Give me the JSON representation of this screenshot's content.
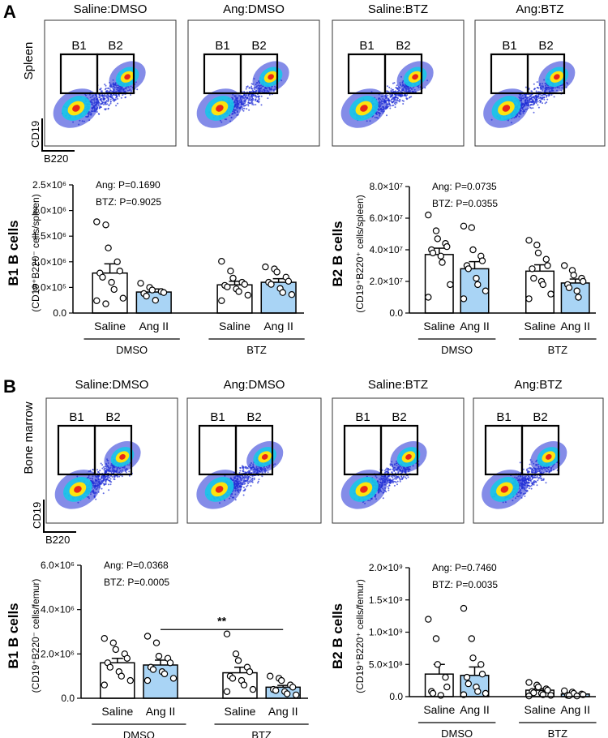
{
  "figure": {
    "colors": {
      "saline_fill": "#ffffff",
      "ang_fill": "#a9d4f5",
      "stroke": "#000000",
      "flow_background": "#ffffff",
      "flow_low": "#1f2dd6",
      "flow_mid": "#17c6e8",
      "flow_high": "#fde30f",
      "flow_peak": "#e8271a"
    },
    "panels": [
      {
        "letter": "A",
        "tissue_label": "Spleen",
        "axis_x_label": "B220",
        "axis_y_label": "CD19",
        "gate_labels": [
          "B1",
          "B2"
        ],
        "plot_titles": [
          "Saline:DMSO",
          "Ang:DMSO",
          "Saline:BTZ",
          "Ang:BTZ"
        ]
      },
      {
        "letter": "B",
        "tissue_label": "Bone marrow",
        "axis_x_label": "B220",
        "axis_y_label": "CD19",
        "gate_labels": [
          "B1",
          "B2"
        ],
        "plot_titles": [
          "Saline:DMSO",
          "Ang:DMSO",
          "Saline:BTZ",
          "Ang:BTZ"
        ]
      }
    ]
  },
  "chart_data": [
    {
      "type": "bar",
      "title": "B1 B cells",
      "ylabel": "(CD19⁺B220⁻ cells/spleen)",
      "ylim": [
        0,
        2500000
      ],
      "ticks": [
        0,
        500000,
        1000000,
        1500000,
        2000000,
        2500000
      ],
      "tick_labels": [
        "0.0",
        "5.0×10⁵",
        "1.0×10⁶",
        "1.5×10⁶",
        "2.0×10⁶",
        "2.5×10⁶"
      ],
      "stats": [
        "Ang: P=0.1690",
        "BTZ: P=0.9025"
      ],
      "group_labels": [
        "DMSO",
        "BTZ"
      ],
      "categories": [
        "Saline",
        "Ang II",
        "Saline",
        "Ang II"
      ],
      "values": [
        780000,
        410000,
        550000,
        600000
      ],
      "sem": [
        180000,
        60000,
        70000,
        70000
      ],
      "points": [
        [
          1780000,
          1720000,
          1270000,
          1000000,
          820000,
          780000,
          700000,
          600000,
          460000,
          290000,
          240000,
          180000
        ],
        [
          580000,
          500000,
          450000,
          420000,
          400000,
          380000,
          330000,
          250000
        ],
        [
          1010000,
          820000,
          680000,
          600000,
          560000,
          540000,
          510000,
          470000,
          420000,
          350000,
          240000
        ],
        [
          900000,
          860000,
          800000,
          700000,
          620000,
          600000,
          560000,
          480000,
          400000,
          360000
        ]
      ],
      "significance": null
    },
    {
      "type": "bar",
      "title": "B2 B cells",
      "ylabel": "(CD19⁺B220⁺ cells/spleen)",
      "ylim": [
        0,
        80000000
      ],
      "ticks": [
        0,
        20000000,
        40000000,
        60000000,
        80000000
      ],
      "tick_labels": [
        "0.0",
        "2.0×10⁷",
        "4.0×10⁷",
        "6.0×10⁷",
        "8.0×10⁷"
      ],
      "stats": [
        "Ang: P=0.0735",
        "BTZ: P=0.0355"
      ],
      "group_labels": [
        "DMSO",
        "BTZ"
      ],
      "categories": [
        "Saline",
        "Ang II",
        "Saline",
        "Ang II"
      ],
      "values": [
        37000000,
        28000000,
        26500000,
        19000000
      ],
      "sem": [
        4000000,
        4500000,
        4000000,
        2500000
      ],
      "points": [
        [
          62000000,
          52000000,
          47000000,
          44000000,
          42000000,
          40000000,
          38000000,
          36000000,
          32000000,
          18000000,
          10000000
        ],
        [
          55000000,
          54000000,
          40000000,
          36000000,
          33000000,
          30000000,
          28000000,
          22000000,
          18000000,
          14000000,
          9000000
        ],
        [
          46000000,
          43000000,
          38000000,
          34000000,
          30000000,
          28000000,
          22000000,
          20000000,
          18000000,
          12000000,
          9000000
        ],
        [
          30000000,
          27000000,
          24000000,
          22000000,
          20000000,
          18000000,
          16000000,
          14000000,
          10000000
        ]
      ],
      "significance": null
    },
    {
      "type": "bar",
      "title": "B1 B cells",
      "ylabel": "(CD19⁺B220⁻ cells/femur)",
      "ylim": [
        0,
        6000000
      ],
      "ticks": [
        0,
        2000000,
        4000000,
        6000000
      ],
      "tick_labels": [
        "0.0",
        "2.0×10⁶",
        "4.0×10⁶",
        "6.0×10⁶"
      ],
      "stats": [
        "Ang: P=0.0368",
        "BTZ: P=0.0005"
      ],
      "group_labels": [
        "DMSO",
        "BTZ"
      ],
      "categories": [
        "Saline",
        "Ang II",
        "Saline",
        "Ang II"
      ],
      "values": [
        1600000,
        1500000,
        1150000,
        500000
      ],
      "sem": [
        200000,
        220000,
        250000,
        80000
      ],
      "points": [
        [
          2700000,
          2500000,
          2200000,
          2000000,
          1800000,
          1600000,
          1400000,
          1200000,
          1000000,
          800000,
          600000
        ],
        [
          2800000,
          2500000,
          1900000,
          1800000,
          1600000,
          1400000,
          1300000,
          1200000,
          1100000,
          900000,
          800000
        ],
        [
          2900000,
          2000000,
          1700000,
          1400000,
          1200000,
          1000000,
          900000,
          800000,
          600000,
          400000,
          300000
        ],
        [
          1000000,
          900000,
          800000,
          600000,
          500000,
          400000,
          350000,
          300000,
          200000,
          150000
        ]
      ],
      "significance": {
        "label": "**",
        "from": 1,
        "to": 3,
        "y": 3100000
      }
    },
    {
      "type": "bar",
      "title": "B2 B cells",
      "ylabel": "(CD19⁺B220⁺ cells/femur)",
      "ylim": [
        0,
        2000000000
      ],
      "ticks": [
        0,
        500000000,
        1000000000,
        1500000000,
        2000000000
      ],
      "tick_labels": [
        "0.0",
        "5.0×10⁸",
        "1.0×10⁹",
        "1.5×10⁹",
        "2.0×10⁹"
      ],
      "stats": [
        "Ang: P=0.7460",
        "BTZ: P=0.0035"
      ],
      "group_labels": [
        "DMSO",
        "BTZ"
      ],
      "categories": [
        "Saline",
        "Ang II",
        "Saline",
        "Ang II"
      ],
      "values": [
        350000000,
        330000000,
        100000000,
        40000000
      ],
      "sem": [
        150000000,
        130000000,
        25000000,
        10000000
      ],
      "points": [
        [
          1200000000,
          900000000,
          500000000,
          300000000,
          150000000,
          80000000,
          50000000,
          20000000
        ],
        [
          1370000000,
          900000000,
          600000000,
          500000000,
          350000000,
          300000000,
          200000000,
          150000000,
          80000000,
          50000000,
          30000000
        ],
        [
          220000000,
          180000000,
          150000000,
          120000000,
          100000000,
          80000000,
          60000000,
          50000000,
          30000000,
          20000000,
          10000000
        ],
        [
          90000000,
          70000000,
          50000000,
          40000000,
          30000000,
          20000000,
          15000000,
          10000000
        ]
      ],
      "significance": null
    }
  ]
}
